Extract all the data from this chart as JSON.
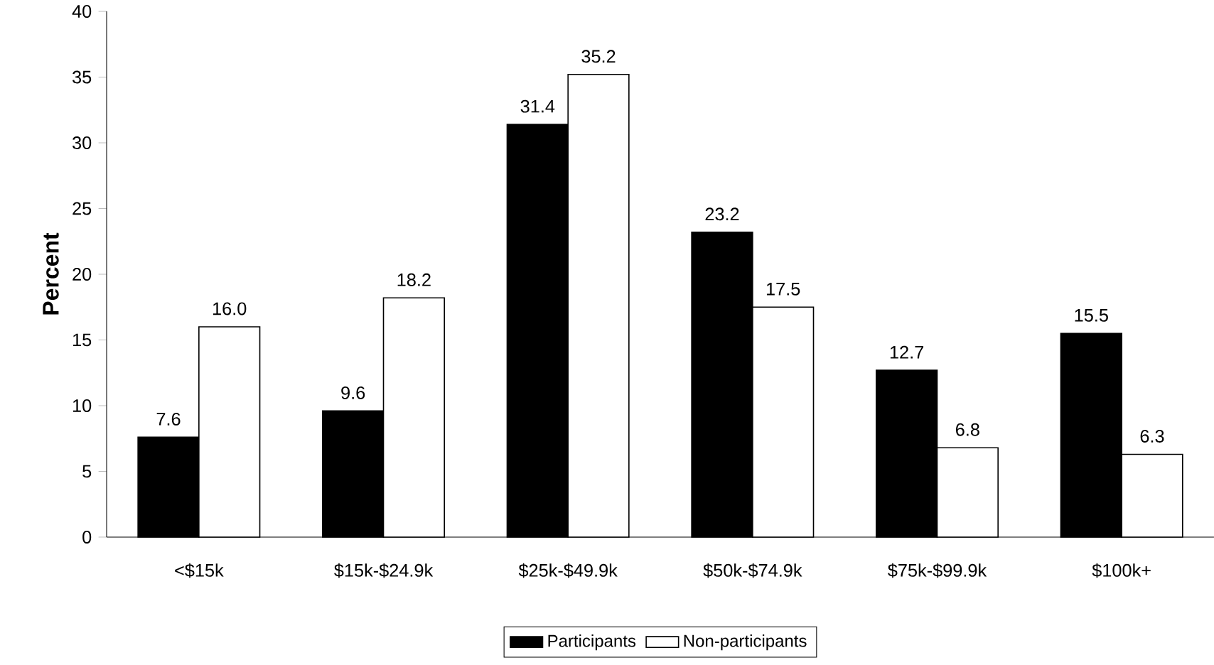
{
  "chart_data": {
    "type": "bar",
    "ylabel": "Percent",
    "categories": [
      "<$15k",
      "$15k-$24.9k",
      "$25k-$49.9k",
      "$50k-$74.9k",
      "$75k-$99.9k",
      "$100k+"
    ],
    "series": [
      {
        "name": "Participants",
        "color": "#000000",
        "values": [
          7.6,
          9.6,
          31.4,
          23.2,
          12.7,
          15.5
        ],
        "value_labels": [
          "7.6",
          "9.6",
          "31.4",
          "23.2",
          "12.7",
          "15.5"
        ]
      },
      {
        "name": "Non-participants",
        "color": "#ffffff",
        "values": [
          16.0,
          18.2,
          35.2,
          17.5,
          6.8,
          6.3
        ],
        "value_labels": [
          "16.0",
          "18.2",
          "35.2",
          "17.5",
          "6.8",
          "6.3"
        ]
      }
    ],
    "ylim": [
      0,
      40
    ],
    "yticks": [
      0,
      5,
      10,
      15,
      20,
      25,
      30,
      35,
      40
    ],
    "grid": false,
    "legend": "bottom"
  }
}
